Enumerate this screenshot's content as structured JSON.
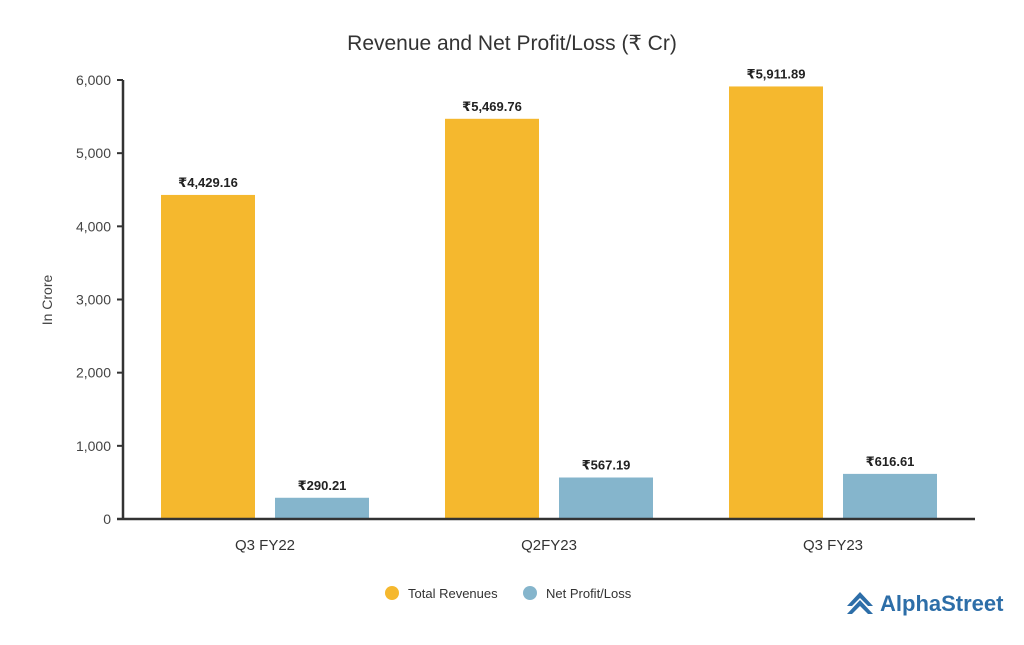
{
  "chart_data": {
    "type": "bar",
    "title": "Revenue and Net Profit/Loss (₹ Cr)",
    "ylabel": "In Crore",
    "xlabel": "",
    "ylim": [
      0,
      6000
    ],
    "yticks": [
      0,
      1000,
      2000,
      3000,
      4000,
      5000,
      6000
    ],
    "ytick_labels": [
      "0",
      "1,000",
      "2,000",
      "3,000",
      "4,000",
      "5,000",
      "6,000"
    ],
    "categories": [
      "Q3 FY22",
      "Q2FY23",
      "Q3 FY23"
    ],
    "series": [
      {
        "name": "Total Revenues",
        "color": "#f5b82e",
        "values": [
          4429.16,
          5469.76,
          5911.89
        ],
        "labels": [
          "₹4,429.16",
          "₹5,469.76",
          "₹5,911.89"
        ]
      },
      {
        "name": "Net Profit/Loss",
        "color": "#85b5cc",
        "values": [
          290.21,
          567.19,
          616.61
        ],
        "labels": [
          "₹290.21",
          "₹567.19",
          "₹616.61"
        ]
      }
    ],
    "grid": false,
    "legend_position": "bottom-center"
  },
  "brand": {
    "name": "AlphaStreet",
    "icon": "alphastreet-logo-icon",
    "color": "#2d6ea8"
  }
}
